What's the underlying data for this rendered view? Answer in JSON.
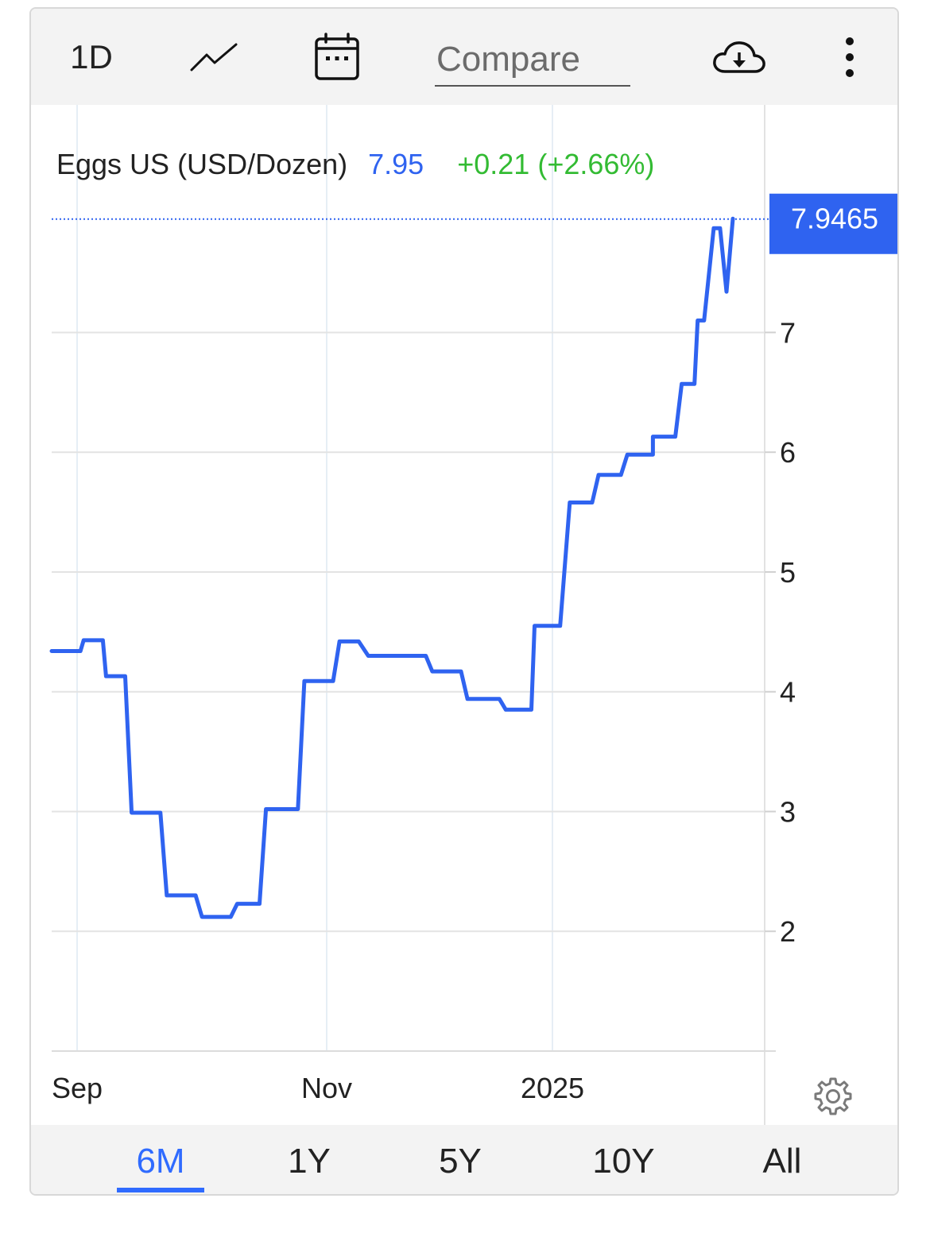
{
  "toolbar": {
    "interval_label": "1D",
    "compare_placeholder": "Compare"
  },
  "chart_data": {
    "type": "line",
    "title": "Eggs US (USD/Dozen)",
    "last_value": "7.95",
    "change": "+0.21 (+2.66%)",
    "price_tag": "7.9465",
    "x_ticks": [
      "Sep",
      "Nov",
      "2025"
    ],
    "y_ticks": [
      2,
      3,
      4,
      5,
      6,
      7
    ],
    "ylim": [
      1,
      8.9
    ],
    "grid": true,
    "series": [
      {
        "color": "#2f63f0",
        "x": [
          "2024-08-25",
          "2024-09-03",
          "2024-09-04",
          "2024-09-10",
          "2024-09-11",
          "2024-09-17",
          "2024-09-19",
          "2024-09-28",
          "2024-09-30",
          "2024-10-09",
          "2024-10-11",
          "2024-10-20",
          "2024-10-22",
          "2024-10-29",
          "2024-10-31",
          "2024-11-10",
          "2024-11-12",
          "2024-11-21",
          "2024-11-23",
          "2024-11-29",
          "2024-12-02",
          "2024-12-20",
          "2024-12-22",
          "2024-12-31",
          "2025-01-02",
          "2025-01-12",
          "2025-01-14",
          "2025-01-22",
          "2025-01-23",
          "2025-01-31",
          "2025-02-03",
          "2025-02-10",
          "2025-02-12",
          "2025-02-19",
          "2025-02-21",
          "2025-02-29",
          "2025-03-01",
          "2025-03-08",
          "2025-03-10",
          "2025-03-14",
          "2025-03-15",
          "2025-03-17",
          "2025-03-20",
          "2025-03-22",
          "2025-03-24",
          "2025-03-26"
        ],
        "values": [
          4.34,
          4.34,
          4.43,
          4.43,
          4.13,
          4.13,
          2.99,
          2.99,
          2.3,
          2.3,
          2.12,
          2.12,
          2.23,
          2.23,
          3.02,
          3.02,
          4.09,
          4.09,
          4.42,
          4.42,
          4.3,
          4.3,
          4.17,
          4.17,
          3.94,
          3.94,
          3.85,
          3.85,
          4.55,
          4.55,
          5.58,
          5.58,
          5.81,
          5.81,
          5.98,
          5.98,
          6.13,
          6.13,
          6.57,
          6.57,
          7.1,
          7.1,
          7.87,
          7.87,
          7.34,
          7.95
        ]
      }
    ]
  },
  "range_buttons": [
    "6M",
    "1Y",
    "5Y",
    "10Y",
    "All"
  ],
  "active_range": "6M"
}
